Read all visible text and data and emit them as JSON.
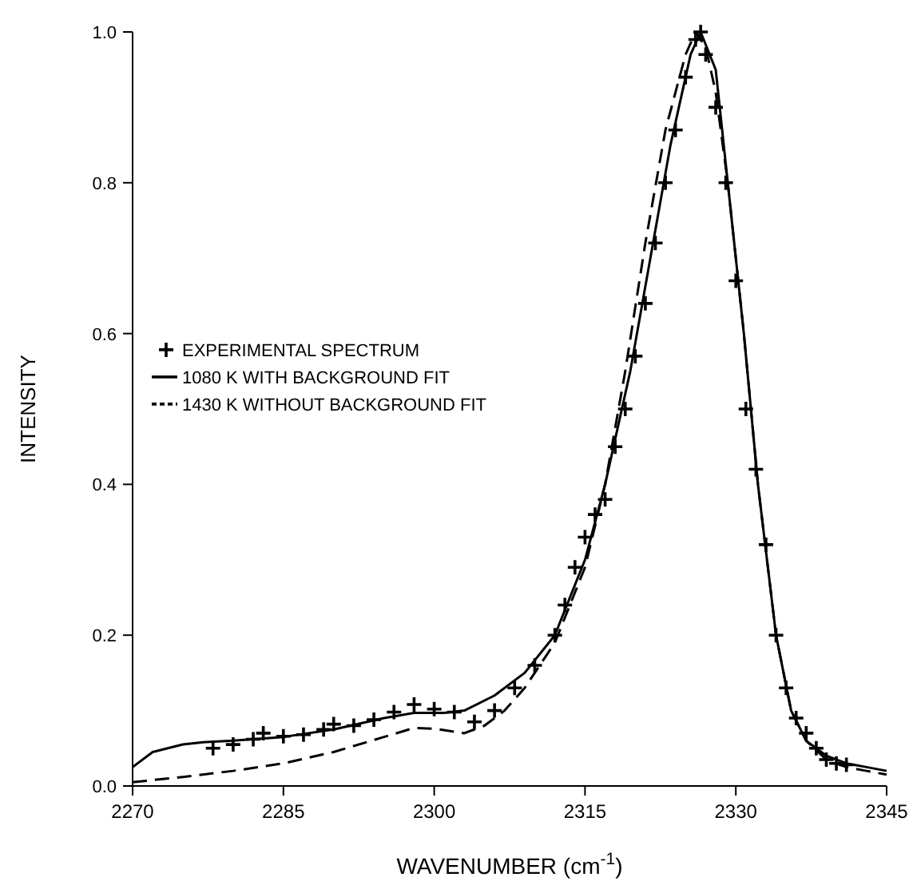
{
  "chart_data": {
    "type": "line",
    "xlabel": "WAVENUMBER (cm$^{-1}$)",
    "ylabel": "INTENSITY",
    "xlim": [
      2270,
      2345
    ],
    "xticks": [
      2270,
      2285,
      2300,
      2315,
      2330,
      2345
    ],
    "ylim": [
      0,
      1.0
    ],
    "yticks": [
      {
        "value": 0,
        "label": "0.0"
      },
      {
        "value": 0.2,
        "label": "0.2"
      },
      {
        "value": 0.4,
        "label": "0.4"
      },
      {
        "value": 0.6,
        "label": "0.6"
      },
      {
        "value": 0.8,
        "label": "0.8"
      },
      {
        "value": 1.0,
        "label": "1.0"
      }
    ],
    "grid": false,
    "legend": "left",
    "series": [
      {
        "name": "EXPERIMENTAL SPECTRUM",
        "type": "scatter",
        "marker": "cross",
        "color": "#000000",
        "x": [
          2278,
          2280,
          2282,
          2283,
          2285,
          2287,
          2289,
          2290,
          2292,
          2294,
          2296,
          2298,
          2300,
          2302,
          2304,
          2306,
          2308,
          2310,
          2312,
          2313,
          2314,
          2315,
          2316,
          2317,
          2318,
          2319,
          2320,
          2321,
          2322,
          2323,
          2324,
          2325,
          2326,
          2326.5,
          2327,
          2328,
          2329,
          2330,
          2331,
          2332,
          2333,
          2334,
          2335,
          2336,
          2337,
          2338,
          2339,
          2340,
          2341
        ],
        "values": [
          0.05,
          0.055,
          0.062,
          0.07,
          0.066,
          0.068,
          0.075,
          0.082,
          0.08,
          0.088,
          0.098,
          0.108,
          0.102,
          0.098,
          0.085,
          0.1,
          0.13,
          0.16,
          0.2,
          0.24,
          0.29,
          0.33,
          0.36,
          0.38,
          0.45,
          0.5,
          0.57,
          0.64,
          0.72,
          0.8,
          0.87,
          0.94,
          0.99,
          1.0,
          0.97,
          0.9,
          0.8,
          0.67,
          0.5,
          0.42,
          0.32,
          0.2,
          0.13,
          0.09,
          0.07,
          0.05,
          0.035,
          0.03,
          0.028
        ]
      },
      {
        "name": "1080 K WITH BACKGROUND FIT",
        "line_style": "solid",
        "color": "#000000",
        "x": [
          2270,
          2272,
          2275,
          2277,
          2280,
          2285,
          2290,
          2295,
          2298,
          2301,
          2303,
          2306,
          2309,
          2312,
          2315,
          2317,
          2319.5,
          2321.5,
          2323.5,
          2325.5,
          2326.5,
          2328,
          2329.2,
          2330.8,
          2332.2,
          2334,
          2335.5,
          2337,
          2339,
          2341,
          2343,
          2345
        ],
        "values": [
          0.025,
          0.045,
          0.055,
          0.058,
          0.06,
          0.065,
          0.075,
          0.09,
          0.097,
          0.097,
          0.1,
          0.12,
          0.15,
          0.2,
          0.3,
          0.4,
          0.55,
          0.7,
          0.85,
          0.97,
          1.0,
          0.95,
          0.8,
          0.6,
          0.4,
          0.2,
          0.1,
          0.06,
          0.04,
          0.03,
          0.025,
          0.02
        ]
      },
      {
        "name": "1430 K WITHOUT BACKGROUND FIT",
        "line_style": "dashed",
        "color": "#000000",
        "x": [
          2270,
          2275,
          2280,
          2285,
          2290,
          2295,
          2298,
          2300,
          2303,
          2305,
          2307,
          2309,
          2312,
          2315,
          2317,
          2319,
          2321,
          2323,
          2325,
          2326,
          2327,
          2328,
          2329.2,
          2330.8,
          2332.2,
          2334,
          2335.5,
          2337,
          2339,
          2341,
          2343,
          2345
        ],
        "values": [
          0.005,
          0.012,
          0.02,
          0.03,
          0.045,
          0.065,
          0.077,
          0.076,
          0.07,
          0.08,
          0.1,
          0.13,
          0.19,
          0.29,
          0.4,
          0.55,
          0.72,
          0.87,
          0.97,
          1.0,
          0.98,
          0.92,
          0.8,
          0.6,
          0.4,
          0.2,
          0.1,
          0.06,
          0.035,
          0.025,
          0.02,
          0.015
        ]
      }
    ]
  }
}
